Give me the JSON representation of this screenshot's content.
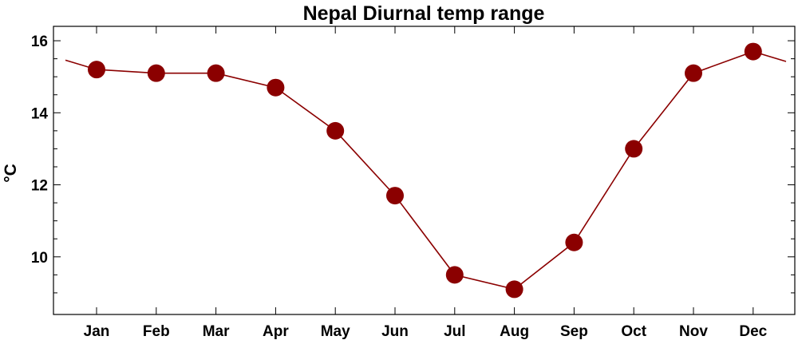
{
  "chart_data": {
    "type": "line",
    "title": "Nepal Diurnal temp range",
    "xlabel": "",
    "ylabel": "°C",
    "categories": [
      "Jan",
      "Feb",
      "Mar",
      "Apr",
      "May",
      "Jun",
      "Jul",
      "Aug",
      "Sep",
      "Oct",
      "Nov",
      "Dec"
    ],
    "series": [
      {
        "values": [
          15.2,
          15.1,
          15.1,
          14.7,
          13.5,
          11.7,
          9.5,
          9.1,
          10.4,
          13.0,
          15.1,
          15.7
        ],
        "color": "#8B0000"
      }
    ],
    "ylim": [
      8.4,
      16.4
    ],
    "yticks": [
      10,
      12,
      14,
      16
    ],
    "grid": false,
    "legend": "none"
  }
}
